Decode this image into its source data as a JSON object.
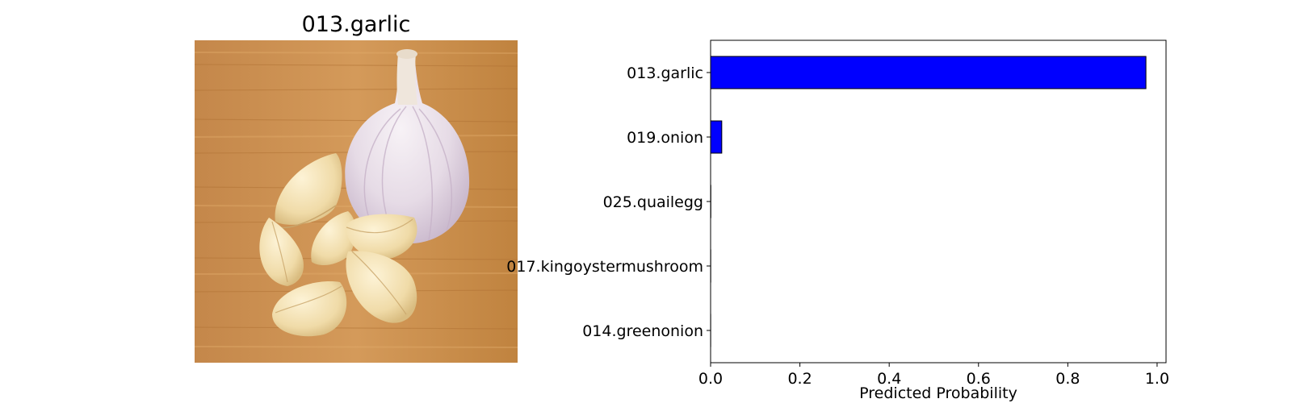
{
  "image_panel": {
    "title": "013.garlic",
    "subject": "garlic bulb and cloves on a wooden cutting board"
  },
  "chart_data": {
    "type": "bar",
    "orientation": "horizontal",
    "categories": [
      "013.garlic",
      "019.onion",
      "025.quailegg",
      "017.kingoystermushroom",
      "014.greenonion"
    ],
    "values": [
      0.975,
      0.025,
      0.0005,
      0.0003,
      0.0002
    ],
    "xlabel": "Predicted Probability",
    "ylabel": "",
    "xlim": [
      0.0,
      1.02
    ],
    "xticks": [
      "0.0",
      "0.2",
      "0.4",
      "0.6",
      "0.8",
      "1.0"
    ],
    "bar_color": "#0000ff",
    "bar_edge_color": "#000000",
    "grid": false,
    "legend": "none"
  }
}
